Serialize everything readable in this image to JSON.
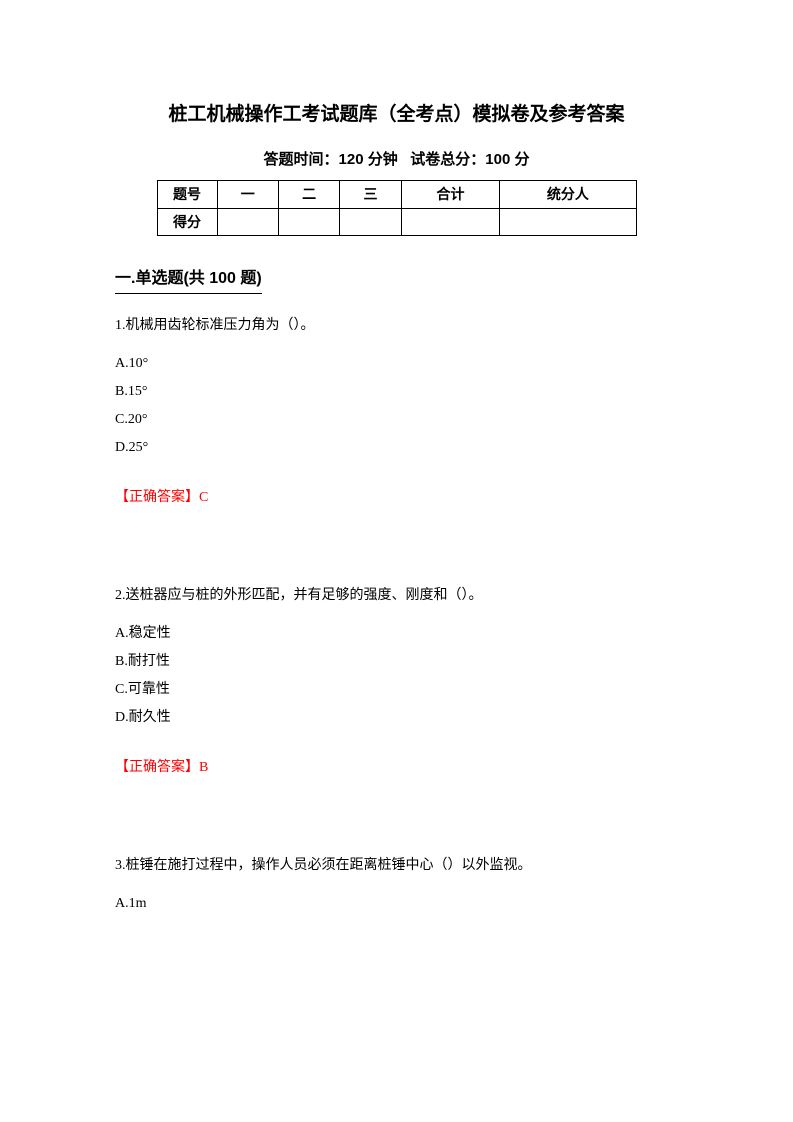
{
  "title": "桩工机械操作工考试题库（全考点）模拟卷及参考答案",
  "subtitle_time_label": "答题时间：",
  "subtitle_time_value": "120 分钟",
  "subtitle_score_label": "试卷总分：",
  "subtitle_score_value": "100 分",
  "table": {
    "headers": [
      "题号",
      "一",
      "二",
      "三",
      "合计",
      "统分人"
    ],
    "row_label": "得分"
  },
  "section_heading": "一.单选题(共 100 题)",
  "questions": [
    {
      "number": "1",
      "text": "机械用齿轮标准压力角为（）。",
      "options": {
        "A": "10°",
        "B": "15°",
        "C": "20°",
        "D": "25°"
      },
      "answer_label": "【正确答案】",
      "answer_value": "C"
    },
    {
      "number": "2",
      "text": "送桩器应与桩的外形匹配，并有足够的强度、刚度和（）。",
      "options": {
        "A": "稳定性",
        "B": "耐打性",
        "C": "可靠性",
        "D": "耐久性"
      },
      "answer_label": "【正确答案】",
      "answer_value": "B"
    },
    {
      "number": "3",
      "text": "桩锤在施打过程中，操作人员必须在距离桩锤中心（）以外监视。",
      "options": {
        "A": "1m"
      }
    }
  ]
}
